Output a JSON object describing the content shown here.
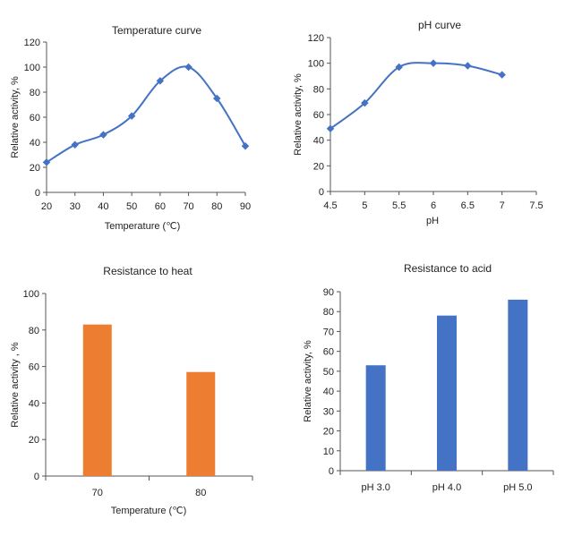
{
  "colors": {
    "line": "#4472c4",
    "bar_heat": "#ed7d31",
    "bar_acid": "#4472c4"
  },
  "chart_data": [
    {
      "type": "line",
      "title": "Temperature curve",
      "xlabel": "Temperature (℃)",
      "ylabel": "Relative activity, %",
      "xlim": [
        20,
        90
      ],
      "ylim": [
        0,
        120
      ],
      "xticks": [
        20,
        30,
        40,
        50,
        60,
        70,
        80,
        90
      ],
      "yticks": [
        0,
        20,
        40,
        60,
        80,
        100,
        120
      ],
      "series": [
        {
          "x": [
            20,
            30,
            40,
            50,
            60,
            70,
            80,
            90
          ],
          "y": [
            24,
            38,
            46,
            61,
            89,
            100,
            75,
            37
          ]
        }
      ]
    },
    {
      "type": "line",
      "title": "pH curve",
      "xlabel": "pH",
      "ylabel": "Relative activity, %",
      "xlim": [
        4.5,
        7.5
      ],
      "ylim": [
        0,
        120
      ],
      "xticks": [
        "4.5",
        "5",
        "5.5",
        "6",
        "6.5",
        "7",
        "7.5"
      ],
      "yticks": [
        0,
        20,
        40,
        60,
        80,
        100,
        120
      ],
      "series": [
        {
          "x": [
            4.5,
            5,
            5.5,
            6,
            6.5,
            7
          ],
          "y": [
            49,
            69,
            97,
            100,
            98,
            91
          ]
        }
      ]
    },
    {
      "type": "bar",
      "title": "Resistance to heat",
      "xlabel": "Temperature (℃)",
      "ylabel": "Relative activity , %",
      "categories": [
        "70",
        "80"
      ],
      "values": [
        83,
        57
      ],
      "ylim": [
        0,
        100
      ],
      "yticks": [
        0,
        20,
        40,
        60,
        80,
        100
      ]
    },
    {
      "type": "bar",
      "title": "Resistance to acid",
      "xlabel": "",
      "ylabel": "Relative activity, %",
      "categories": [
        "pH 3.0",
        "pH 4.0",
        "pH 5.0"
      ],
      "values": [
        53,
        78,
        86
      ],
      "ylim": [
        0,
        90
      ],
      "yticks": [
        0,
        10,
        20,
        30,
        40,
        50,
        60,
        70,
        80,
        90
      ]
    }
  ]
}
